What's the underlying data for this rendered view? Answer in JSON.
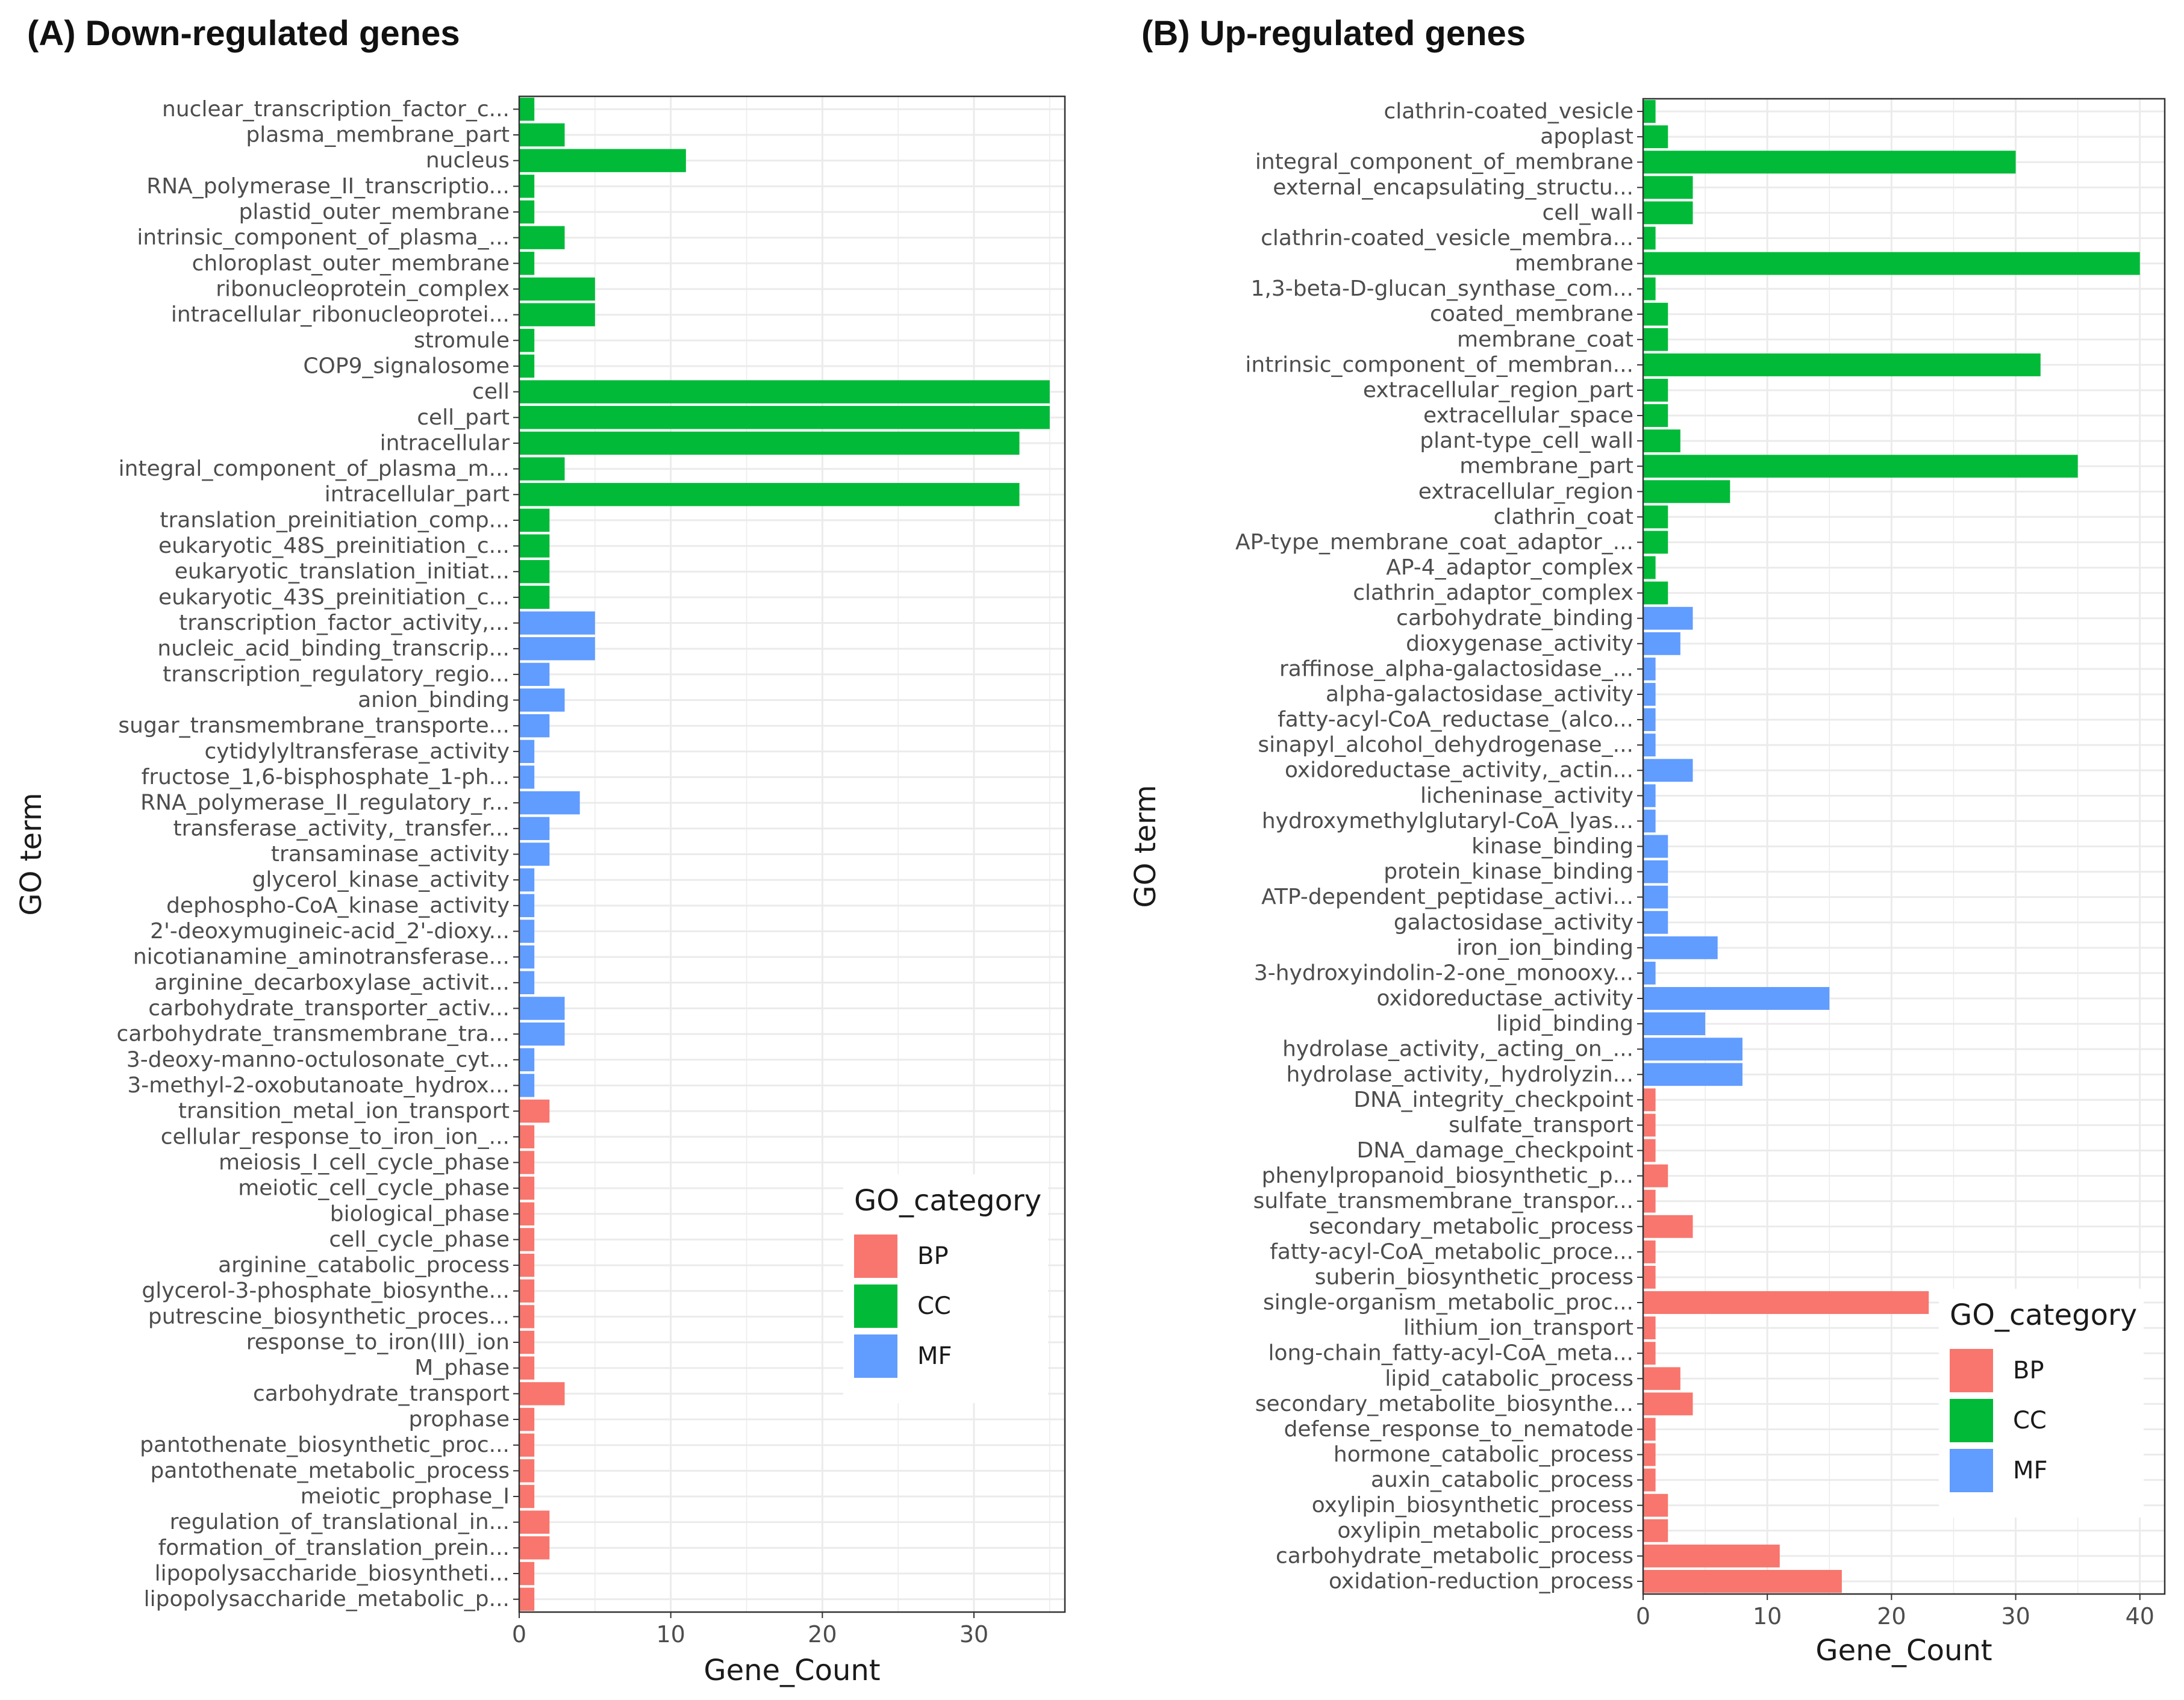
{
  "colors": {
    "BP": "#F8766D",
    "CC": "#00BA38",
    "MF": "#619CFF"
  },
  "chart_data": [
    {
      "type": "bar",
      "orientation": "horizontal",
      "title": "(A) Down-regulated genes",
      "xlabel": "Gene_Count",
      "ylabel": "GO term",
      "xlim": [
        0,
        36
      ],
      "xticks": [
        0,
        10,
        20,
        30
      ],
      "legend": {
        "title": "GO_category",
        "entries": [
          "BP",
          "CC",
          "MF"
        ],
        "position": "right"
      },
      "bars": [
        {
          "term": "nuclear_transcription_factor_c...",
          "value": 1,
          "category": "CC"
        },
        {
          "term": "plasma_membrane_part",
          "value": 3,
          "category": "CC"
        },
        {
          "term": "nucleus",
          "value": 11,
          "category": "CC"
        },
        {
          "term": "RNA_polymerase_II_transcriptio...",
          "value": 1,
          "category": "CC"
        },
        {
          "term": "plastid_outer_membrane",
          "value": 1,
          "category": "CC"
        },
        {
          "term": "intrinsic_component_of_plasma_...",
          "value": 3,
          "category": "CC"
        },
        {
          "term": "chloroplast_outer_membrane",
          "value": 1,
          "category": "CC"
        },
        {
          "term": "ribonucleoprotein_complex",
          "value": 5,
          "category": "CC"
        },
        {
          "term": "intracellular_ribonucleoprotei...",
          "value": 5,
          "category": "CC"
        },
        {
          "term": "stromule",
          "value": 1,
          "category": "CC"
        },
        {
          "term": "COP9_signalosome",
          "value": 1,
          "category": "CC"
        },
        {
          "term": "cell",
          "value": 35,
          "category": "CC"
        },
        {
          "term": "cell_part",
          "value": 35,
          "category": "CC"
        },
        {
          "term": "intracellular",
          "value": 33,
          "category": "CC"
        },
        {
          "term": "integral_component_of_plasma_m...",
          "value": 3,
          "category": "CC"
        },
        {
          "term": "intracellular_part",
          "value": 33,
          "category": "CC"
        },
        {
          "term": "translation_preinitiation_comp...",
          "value": 2,
          "category": "CC"
        },
        {
          "term": "eukaryotic_48S_preinitiation_c...",
          "value": 2,
          "category": "CC"
        },
        {
          "term": "eukaryotic_translation_initiat...",
          "value": 2,
          "category": "CC"
        },
        {
          "term": "eukaryotic_43S_preinitiation_c...",
          "value": 2,
          "category": "CC"
        },
        {
          "term": "transcription_factor_activity,...",
          "value": 5,
          "category": "MF"
        },
        {
          "term": "nucleic_acid_binding_transcrip...",
          "value": 5,
          "category": "MF"
        },
        {
          "term": "transcription_regulatory_regio...",
          "value": 2,
          "category": "MF"
        },
        {
          "term": "anion_binding",
          "value": 3,
          "category": "MF"
        },
        {
          "term": "sugar_transmembrane_transporte...",
          "value": 2,
          "category": "MF"
        },
        {
          "term": "cytidylyltransferase_activity",
          "value": 1,
          "category": "MF"
        },
        {
          "term": "fructose_1,6-bisphosphate_1-ph...",
          "value": 1,
          "category": "MF"
        },
        {
          "term": "RNA_polymerase_II_regulatory_r...",
          "value": 4,
          "category": "MF"
        },
        {
          "term": "transferase_activity,_transfer...",
          "value": 2,
          "category": "MF"
        },
        {
          "term": "transaminase_activity",
          "value": 2,
          "category": "MF"
        },
        {
          "term": "glycerol_kinase_activity",
          "value": 1,
          "category": "MF"
        },
        {
          "term": "dephospho-CoA_kinase_activity",
          "value": 1,
          "category": "MF"
        },
        {
          "term": "2'-deoxymugineic-acid_2'-dioxy...",
          "value": 1,
          "category": "MF"
        },
        {
          "term": "nicotianamine_aminotransferase...",
          "value": 1,
          "category": "MF"
        },
        {
          "term": "arginine_decarboxylase_activit...",
          "value": 1,
          "category": "MF"
        },
        {
          "term": "carbohydrate_transporter_activ...",
          "value": 3,
          "category": "MF"
        },
        {
          "term": "carbohydrate_transmembrane_tra...",
          "value": 3,
          "category": "MF"
        },
        {
          "term": "3-deoxy-manno-octulosonate_cyt...",
          "value": 1,
          "category": "MF"
        },
        {
          "term": "3-methyl-2-oxobutanoate_hydrox...",
          "value": 1,
          "category": "MF"
        },
        {
          "term": "transition_metal_ion_transport",
          "value": 2,
          "category": "BP"
        },
        {
          "term": "cellular_response_to_iron_ion_...",
          "value": 1,
          "category": "BP"
        },
        {
          "term": "meiosis_I_cell_cycle_phase",
          "value": 1,
          "category": "BP"
        },
        {
          "term": "meiotic_cell_cycle_phase",
          "value": 1,
          "category": "BP"
        },
        {
          "term": "biological_phase",
          "value": 1,
          "category": "BP"
        },
        {
          "term": "cell_cycle_phase",
          "value": 1,
          "category": "BP"
        },
        {
          "term": "arginine_catabolic_process",
          "value": 1,
          "category": "BP"
        },
        {
          "term": "glycerol-3-phosphate_biosynthe...",
          "value": 1,
          "category": "BP"
        },
        {
          "term": "putrescine_biosynthetic_proces...",
          "value": 1,
          "category": "BP"
        },
        {
          "term": "response_to_iron(III)_ion",
          "value": 1,
          "category": "BP"
        },
        {
          "term": "M_phase",
          "value": 1,
          "category": "BP"
        },
        {
          "term": "carbohydrate_transport",
          "value": 3,
          "category": "BP"
        },
        {
          "term": "prophase",
          "value": 1,
          "category": "BP"
        },
        {
          "term": "pantothenate_biosynthetic_proc...",
          "value": 1,
          "category": "BP"
        },
        {
          "term": "pantothenate_metabolic_process",
          "value": 1,
          "category": "BP"
        },
        {
          "term": "meiotic_prophase_I",
          "value": 1,
          "category": "BP"
        },
        {
          "term": "regulation_of_translational_in...",
          "value": 2,
          "category": "BP"
        },
        {
          "term": "formation_of_translation_prein...",
          "value": 2,
          "category": "BP"
        },
        {
          "term": "lipopolysaccharide_biosyntheti...",
          "value": 1,
          "category": "BP"
        },
        {
          "term": "lipopolysaccharide_metabolic_p...",
          "value": 1,
          "category": "BP"
        }
      ]
    },
    {
      "type": "bar",
      "orientation": "horizontal",
      "title": "(B) Up-regulated genes",
      "xlabel": "Gene_Count",
      "ylabel": "GO term",
      "xlim": [
        0,
        42
      ],
      "xticks": [
        0,
        10,
        20,
        30,
        40
      ],
      "legend": {
        "title": "GO_category",
        "entries": [
          "BP",
          "CC",
          "MF"
        ],
        "position": "right"
      },
      "bars": [
        {
          "term": "clathrin-coated_vesicle",
          "value": 1,
          "category": "CC"
        },
        {
          "term": "apoplast",
          "value": 2,
          "category": "CC"
        },
        {
          "term": "integral_component_of_membrane",
          "value": 30,
          "category": "CC"
        },
        {
          "term": "external_encapsulating_structu...",
          "value": 4,
          "category": "CC"
        },
        {
          "term": "cell_wall",
          "value": 4,
          "category": "CC"
        },
        {
          "term": "clathrin-coated_vesicle_membra...",
          "value": 1,
          "category": "CC"
        },
        {
          "term": "membrane",
          "value": 40,
          "category": "CC"
        },
        {
          "term": "1,3-beta-D-glucan_synthase_com...",
          "value": 1,
          "category": "CC"
        },
        {
          "term": "coated_membrane",
          "value": 2,
          "category": "CC"
        },
        {
          "term": "membrane_coat",
          "value": 2,
          "category": "CC"
        },
        {
          "term": "intrinsic_component_of_membran...",
          "value": 32,
          "category": "CC"
        },
        {
          "term": "extracellular_region_part",
          "value": 2,
          "category": "CC"
        },
        {
          "term": "extracellular_space",
          "value": 2,
          "category": "CC"
        },
        {
          "term": "plant-type_cell_wall",
          "value": 3,
          "category": "CC"
        },
        {
          "term": "membrane_part",
          "value": 35,
          "category": "CC"
        },
        {
          "term": "extracellular_region",
          "value": 7,
          "category": "CC"
        },
        {
          "term": "clathrin_coat",
          "value": 2,
          "category": "CC"
        },
        {
          "term": "AP-type_membrane_coat_adaptor_...",
          "value": 2,
          "category": "CC"
        },
        {
          "term": "AP-4_adaptor_complex",
          "value": 1,
          "category": "CC"
        },
        {
          "term": "clathrin_adaptor_complex",
          "value": 2,
          "category": "CC"
        },
        {
          "term": "carbohydrate_binding",
          "value": 4,
          "category": "MF"
        },
        {
          "term": "dioxygenase_activity",
          "value": 3,
          "category": "MF"
        },
        {
          "term": "raffinose_alpha-galactosidase_...",
          "value": 1,
          "category": "MF"
        },
        {
          "term": "alpha-galactosidase_activity",
          "value": 1,
          "category": "MF"
        },
        {
          "term": "fatty-acyl-CoA_reductase_(alco...",
          "value": 1,
          "category": "MF"
        },
        {
          "term": "sinapyl_alcohol_dehydrogenase_...",
          "value": 1,
          "category": "MF"
        },
        {
          "term": "oxidoreductase_activity,_actin...",
          "value": 4,
          "category": "MF"
        },
        {
          "term": "licheninase_activity",
          "value": 1,
          "category": "MF"
        },
        {
          "term": "hydroxymethylglutaryl-CoA_lyas...",
          "value": 1,
          "category": "MF"
        },
        {
          "term": "kinase_binding",
          "value": 2,
          "category": "MF"
        },
        {
          "term": "protein_kinase_binding",
          "value": 2,
          "category": "MF"
        },
        {
          "term": "ATP-dependent_peptidase_activi...",
          "value": 2,
          "category": "MF"
        },
        {
          "term": "galactosidase_activity",
          "value": 2,
          "category": "MF"
        },
        {
          "term": "iron_ion_binding",
          "value": 6,
          "category": "MF"
        },
        {
          "term": "3-hydroxyindolin-2-one_monooxy...",
          "value": 1,
          "category": "MF"
        },
        {
          "term": "oxidoreductase_activity",
          "value": 15,
          "category": "MF"
        },
        {
          "term": "lipid_binding",
          "value": 5,
          "category": "MF"
        },
        {
          "term": "hydrolase_activity,_acting_on_...",
          "value": 8,
          "category": "MF"
        },
        {
          "term": "hydrolase_activity,_hydrolyzin...",
          "value": 8,
          "category": "MF"
        },
        {
          "term": "DNA_integrity_checkpoint",
          "value": 1,
          "category": "BP"
        },
        {
          "term": "sulfate_transport",
          "value": 1,
          "category": "BP"
        },
        {
          "term": "DNA_damage_checkpoint",
          "value": 1,
          "category": "BP"
        },
        {
          "term": "phenylpropanoid_biosynthetic_p...",
          "value": 2,
          "category": "BP"
        },
        {
          "term": "sulfate_transmembrane_transpor...",
          "value": 1,
          "category": "BP"
        },
        {
          "term": "secondary_metabolic_process",
          "value": 4,
          "category": "BP"
        },
        {
          "term": "fatty-acyl-CoA_metabolic_proce...",
          "value": 1,
          "category": "BP"
        },
        {
          "term": "suberin_biosynthetic_process",
          "value": 1,
          "category": "BP"
        },
        {
          "term": "single-organism_metabolic_proc...",
          "value": 23,
          "category": "BP"
        },
        {
          "term": "lithium_ion_transport",
          "value": 1,
          "category": "BP"
        },
        {
          "term": "long-chain_fatty-acyl-CoA_meta...",
          "value": 1,
          "category": "BP"
        },
        {
          "term": "lipid_catabolic_process",
          "value": 3,
          "category": "BP"
        },
        {
          "term": "secondary_metabolite_biosynthe...",
          "value": 4,
          "category": "BP"
        },
        {
          "term": "defense_response_to_nematode",
          "value": 1,
          "category": "BP"
        },
        {
          "term": "hormone_catabolic_process",
          "value": 1,
          "category": "BP"
        },
        {
          "term": "auxin_catabolic_process",
          "value": 1,
          "category": "BP"
        },
        {
          "term": "oxylipin_biosynthetic_process",
          "value": 2,
          "category": "BP"
        },
        {
          "term": "oxylipin_metabolic_process",
          "value": 2,
          "category": "BP"
        },
        {
          "term": "carbohydrate_metabolic_process",
          "value": 11,
          "category": "BP"
        },
        {
          "term": "oxidation-reduction_process",
          "value": 16,
          "category": "BP"
        }
      ]
    }
  ]
}
